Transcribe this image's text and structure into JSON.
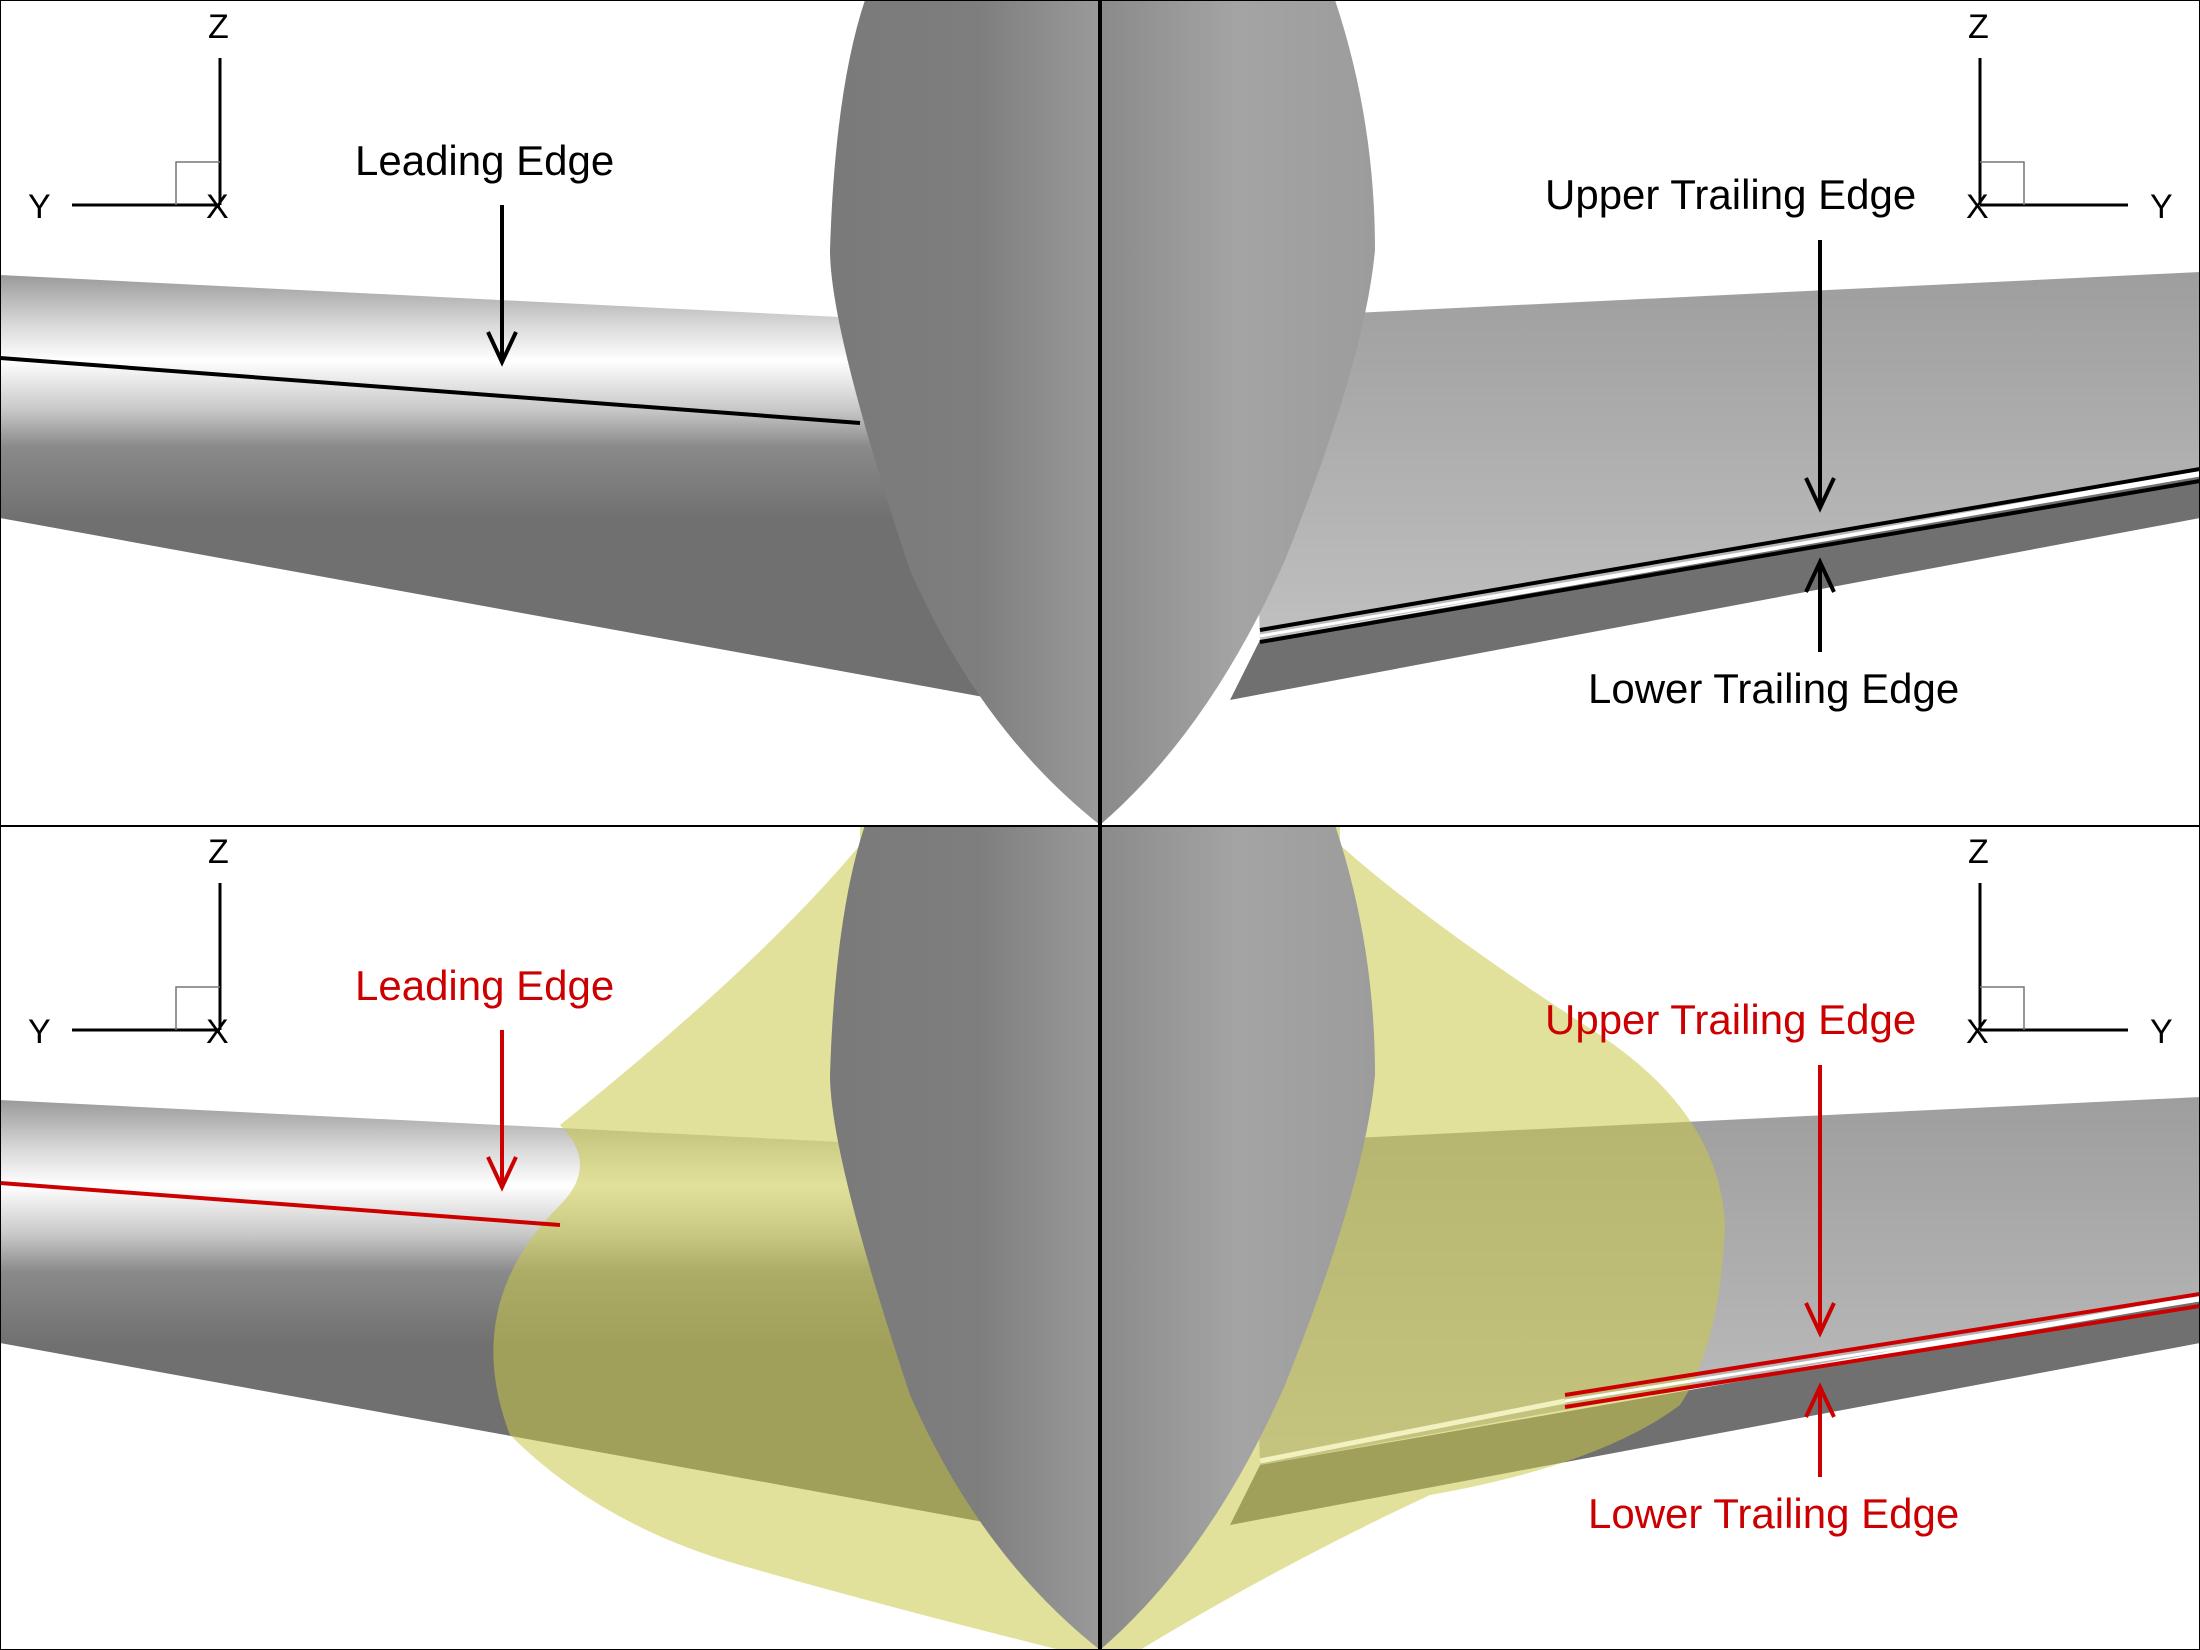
{
  "panels": [
    {
      "id": "top-left",
      "annotations": {
        "leading_edge": "Leading Edge"
      },
      "annotation_color": "#000000",
      "axis_triad": {
        "z": "Z",
        "y": "Y",
        "x": "X"
      }
    },
    {
      "id": "top-right",
      "annotations": {
        "upper_trailing_edge": "Upper Trailing Edge",
        "lower_trailing_edge": "Lower Trailing Edge"
      },
      "annotation_color": "#000000",
      "axis_triad": {
        "z": "Z",
        "y": "Y",
        "x": "X"
      }
    },
    {
      "id": "bottom-left",
      "annotations": {
        "leading_edge": "Leading Edge"
      },
      "annotation_color": "#cc0000",
      "axis_triad": {
        "z": "Z",
        "y": "Y",
        "x": "X"
      }
    },
    {
      "id": "bottom-right",
      "annotations": {
        "upper_trailing_edge": "Upper Trailing Edge",
        "lower_trailing_edge": "Lower Trailing Edge"
      },
      "annotation_color": "#cc0000",
      "axis_triad": {
        "z": "Z",
        "y": "Y",
        "x": "X"
      }
    }
  ],
  "colors": {
    "fuselage": "#7a7a7a",
    "wing": "#a8a8a8",
    "highlight_volume": "#d8d86a",
    "black_annotation": "#000000",
    "red_annotation": "#cc0000"
  }
}
